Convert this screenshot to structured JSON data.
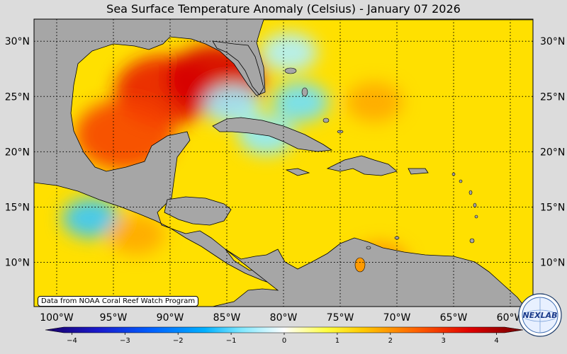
{
  "title": "Sea Surface Temperature Anomaly (Celsius) - January 07 2026",
  "credit": "Data from NOAA Coral Reef Watch Program",
  "logo_text": "NEXLAB",
  "map": {
    "lon_range": [
      -102,
      -58
    ],
    "lat_range": [
      6,
      32
    ],
    "lon_ticks": [
      {
        "value": -100,
        "label": "100°W"
      },
      {
        "value": -95,
        "label": "95°W"
      },
      {
        "value": -90,
        "label": "90°W"
      },
      {
        "value": -85,
        "label": "85°W"
      },
      {
        "value": -80,
        "label": "80°W"
      },
      {
        "value": -75,
        "label": "75°W"
      },
      {
        "value": -70,
        "label": "70°W"
      },
      {
        "value": -65,
        "label": "65°W"
      },
      {
        "value": -60,
        "label": "60°W"
      }
    ],
    "lat_ticks": [
      {
        "value": 30,
        "label": "30°N"
      },
      {
        "value": 25,
        "label": "25°N"
      },
      {
        "value": 20,
        "label": "20°N"
      },
      {
        "value": 15,
        "label": "15°N"
      },
      {
        "value": 10,
        "label": "10°N"
      }
    ],
    "grid": true,
    "land_color": "#a6a6a6",
    "ocean_base_color": "#ffe000"
  },
  "colorbar": {
    "min": -4.5,
    "max": 4.5,
    "ticks": [
      {
        "value": -4,
        "label": "−4"
      },
      {
        "value": -3,
        "label": "−3"
      },
      {
        "value": -2,
        "label": "−2"
      },
      {
        "value": -1,
        "label": "−1"
      },
      {
        "value": 0,
        "label": "0"
      },
      {
        "value": 1,
        "label": "1"
      },
      {
        "value": 2,
        "label": "2"
      },
      {
        "value": 3,
        "label": "3"
      },
      {
        "value": 4,
        "label": "4"
      }
    ],
    "stops": [
      {
        "value": -4.5,
        "color": "#1a0066"
      },
      {
        "value": -3.5,
        "color": "#1a1acc"
      },
      {
        "value": -2.5,
        "color": "#0060ff"
      },
      {
        "value": -1.5,
        "color": "#00b0ff"
      },
      {
        "value": -0.8,
        "color": "#80e8ff"
      },
      {
        "value": 0,
        "color": "#ffffff"
      },
      {
        "value": 0.8,
        "color": "#ffff40"
      },
      {
        "value": 1.5,
        "color": "#ffc800"
      },
      {
        "value": 2.5,
        "color": "#ff6000"
      },
      {
        "value": 3.5,
        "color": "#e00000"
      },
      {
        "value": 4.5,
        "color": "#700000"
      }
    ]
  },
  "anomaly_regions": [
    {
      "name": "gulf-of-mexico-warm",
      "lon": -90.5,
      "lat": 25.5,
      "value": 3.2
    },
    {
      "name": "loop-current-warm",
      "lon": -86,
      "lat": 26.5,
      "value": 3.6
    },
    {
      "name": "campeche-warm",
      "lon": -94,
      "lat": 21.5,
      "value": 2.8
    },
    {
      "name": "yucatan-channel-cool",
      "lon": -84.5,
      "lat": 24.2,
      "value": -0.6
    },
    {
      "name": "cuba-south-cool",
      "lon": -81.5,
      "lat": 21.5,
      "value": -0.7
    },
    {
      "name": "bahamas-cool",
      "lon": -78.5,
      "lat": 24.5,
      "value": -0.9
    },
    {
      "name": "florida-east-cool",
      "lon": -79.5,
      "lat": 29,
      "value": -0.5
    },
    {
      "name": "atlantic-warm",
      "lon": -72,
      "lat": 24.5,
      "value": 1.8
    },
    {
      "name": "pacific-cool",
      "lon": -97,
      "lat": 14,
      "value": -1.2
    },
    {
      "name": "pacific-warm",
      "lon": -93,
      "lat": 12.5,
      "value": 1.8
    },
    {
      "name": "lake-maracaibo-warm",
      "lon": -71.5,
      "lat": 10,
      "value": 2.0
    }
  ]
}
